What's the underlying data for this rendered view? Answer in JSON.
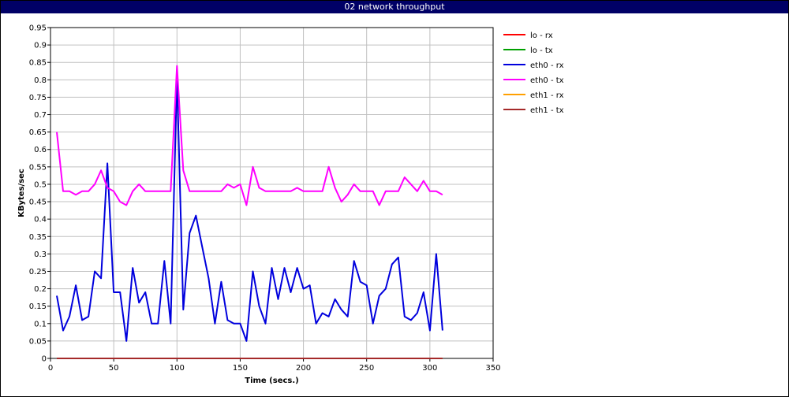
{
  "window": {
    "title": "02 network throughput"
  },
  "chart_data": {
    "type": "line",
    "title": "02 network throughput",
    "xlabel": "Time (secs.)",
    "ylabel": "KBytes/sec",
    "xlim": [
      0,
      350
    ],
    "ylim": [
      0,
      0.95
    ],
    "x_ticks": [
      "0",
      "50",
      "100",
      "150",
      "200",
      "250",
      "300",
      "350"
    ],
    "y_ticks": [
      "0",
      "0.05",
      "0.1",
      "0.15",
      "0.2",
      "0.25",
      "0.3",
      "0.35",
      "0.4",
      "0.45",
      "0.5",
      "0.55",
      "0.6",
      "0.65",
      "0.7",
      "0.75",
      "0.8",
      "0.85",
      "0.9",
      "0.95"
    ],
    "grid": true,
    "legend_position": "right",
    "x": [
      5,
      10,
      15,
      20,
      25,
      30,
      35,
      40,
      45,
      50,
      55,
      60,
      65,
      70,
      75,
      80,
      85,
      90,
      95,
      100,
      105,
      110,
      115,
      120,
      125,
      130,
      135,
      140,
      145,
      150,
      155,
      160,
      165,
      170,
      175,
      180,
      185,
      190,
      195,
      200,
      205,
      210,
      215,
      220,
      225,
      230,
      235,
      240,
      245,
      250,
      255,
      260,
      265,
      270,
      275,
      280,
      285,
      290,
      295,
      300,
      305,
      310
    ],
    "series": [
      {
        "name": "lo - rx",
        "color": "#ff0000",
        "values": [
          0,
          0,
          0,
          0,
          0,
          0,
          0,
          0,
          0,
          0,
          0,
          0,
          0,
          0,
          0,
          0,
          0,
          0,
          0,
          0,
          0,
          0,
          0,
          0,
          0,
          0,
          0,
          0,
          0,
          0,
          0,
          0,
          0,
          0,
          0,
          0,
          0,
          0,
          0,
          0,
          0,
          0,
          0,
          0,
          0,
          0,
          0,
          0,
          0,
          0,
          0,
          0,
          0,
          0,
          0,
          0,
          0,
          0,
          0,
          0,
          0,
          0
        ]
      },
      {
        "name": "lo - tx",
        "color": "#00a000",
        "values": [
          0,
          0,
          0,
          0,
          0,
          0,
          0,
          0,
          0,
          0,
          0,
          0,
          0,
          0,
          0,
          0,
          0,
          0,
          0,
          0,
          0,
          0,
          0,
          0,
          0,
          0,
          0,
          0,
          0,
          0,
          0,
          0,
          0,
          0,
          0,
          0,
          0,
          0,
          0,
          0,
          0,
          0,
          0,
          0,
          0,
          0,
          0,
          0,
          0,
          0,
          0,
          0,
          0,
          0,
          0,
          0,
          0,
          0,
          0,
          0,
          0,
          0
        ]
      },
      {
        "name": "eth0 - rx",
        "color": "#0000dd",
        "values": [
          0.18,
          0.08,
          0.12,
          0.21,
          0.11,
          0.12,
          0.25,
          0.23,
          0.56,
          0.19,
          0.19,
          0.05,
          0.26,
          0.16,
          0.19,
          0.1,
          0.1,
          0.28,
          0.1,
          0.81,
          0.14,
          0.36,
          0.41,
          0.32,
          0.23,
          0.1,
          0.22,
          0.11,
          0.1,
          0.1,
          0.05,
          0.25,
          0.15,
          0.1,
          0.26,
          0.17,
          0.26,
          0.19,
          0.26,
          0.2,
          0.21,
          0.1,
          0.13,
          0.12,
          0.17,
          0.14,
          0.12,
          0.28,
          0.22,
          0.21,
          0.1,
          0.18,
          0.2,
          0.27,
          0.29,
          0.12,
          0.11,
          0.13,
          0.19,
          0.08,
          0.3,
          0.08
        ]
      },
      {
        "name": "eth0 - tx",
        "color": "#ff00ff",
        "values": [
          0.65,
          0.48,
          0.48,
          0.47,
          0.48,
          0.48,
          0.5,
          0.54,
          0.49,
          0.48,
          0.45,
          0.44,
          0.48,
          0.5,
          0.48,
          0.48,
          0.48,
          0.48,
          0.48,
          0.84,
          0.54,
          0.48,
          0.48,
          0.48,
          0.48,
          0.48,
          0.48,
          0.5,
          0.49,
          0.5,
          0.44,
          0.55,
          0.49,
          0.48,
          0.48,
          0.48,
          0.48,
          0.48,
          0.49,
          0.48,
          0.48,
          0.48,
          0.48,
          0.55,
          0.49,
          0.45,
          0.47,
          0.5,
          0.48,
          0.48,
          0.48,
          0.44,
          0.48,
          0.48,
          0.48,
          0.52,
          0.5,
          0.48,
          0.51,
          0.48,
          0.48,
          0.47
        ]
      },
      {
        "name": "eth1 - rx",
        "color": "#ffa000",
        "values": [
          0,
          0,
          0,
          0,
          0,
          0,
          0,
          0,
          0,
          0,
          0,
          0,
          0,
          0,
          0,
          0,
          0,
          0,
          0,
          0,
          0,
          0,
          0,
          0,
          0,
          0,
          0,
          0,
          0,
          0,
          0,
          0,
          0,
          0,
          0,
          0,
          0,
          0,
          0,
          0,
          0,
          0,
          0,
          0,
          0,
          0,
          0,
          0,
          0,
          0,
          0,
          0,
          0,
          0,
          0,
          0,
          0,
          0,
          0,
          0,
          0,
          0
        ]
      },
      {
        "name": "eth1 - tx",
        "color": "#a52a2a",
        "values": [
          0,
          0,
          0,
          0,
          0,
          0,
          0,
          0,
          0,
          0,
          0,
          0,
          0,
          0,
          0,
          0,
          0,
          0,
          0,
          0,
          0,
          0,
          0,
          0,
          0,
          0,
          0,
          0,
          0,
          0,
          0,
          0,
          0,
          0,
          0,
          0,
          0,
          0,
          0,
          0,
          0,
          0,
          0,
          0,
          0,
          0,
          0,
          0,
          0,
          0,
          0,
          0,
          0,
          0,
          0,
          0,
          0,
          0,
          0,
          0,
          0,
          0
        ]
      }
    ]
  }
}
